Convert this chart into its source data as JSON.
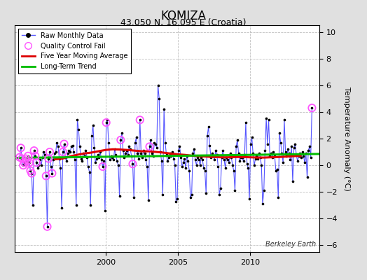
{
  "title": "KOMIZA",
  "subtitle": "43.050 N, 16.095 E (Croatia)",
  "ylabel": "Temperature Anomaly (°C)",
  "watermark": "Berkeley Earth",
  "xlim": [
    1993.7,
    2014.8
  ],
  "ylim": [
    -6.5,
    10.5
  ],
  "yticks": [
    -6,
    -4,
    -2,
    0,
    2,
    4,
    6,
    8,
    10
  ],
  "xticks": [
    2000,
    2005,
    2010
  ],
  "bg_color": "#e0e0e0",
  "plot_bg_color": "#ffffff",
  "grid_color": "#c0c0c0",
  "raw_line_color": "#5555ff",
  "raw_dot_color": "#000000",
  "qc_fail_color": "#ff55ff",
  "moving_avg_color": "#dd0000",
  "trend_color": "#00bb00",
  "raw_data": [
    [
      1994.042,
      0.6
    ],
    [
      1994.125,
      1.3
    ],
    [
      1994.208,
      0.5
    ],
    [
      1994.292,
      0.0
    ],
    [
      1994.375,
      0.2
    ],
    [
      1994.458,
      0.5
    ],
    [
      1994.542,
      0.3
    ],
    [
      1994.625,
      0.7
    ],
    [
      1994.708,
      0.2
    ],
    [
      1994.792,
      -0.4
    ],
    [
      1994.875,
      -0.6
    ],
    [
      1994.958,
      -3.0
    ],
    [
      1995.042,
      1.1
    ],
    [
      1995.125,
      0.7
    ],
    [
      1995.208,
      0.2
    ],
    [
      1995.292,
      -0.2
    ],
    [
      1995.375,
      0.0
    ],
    [
      1995.458,
      0.4
    ],
    [
      1995.542,
      0.0
    ],
    [
      1995.625,
      0.6
    ],
    [
      1995.708,
      1.0
    ],
    [
      1995.792,
      0.8
    ],
    [
      1995.875,
      -0.8
    ],
    [
      1995.958,
      -4.6
    ],
    [
      1996.042,
      0.5
    ],
    [
      1996.125,
      1.0
    ],
    [
      1996.208,
      -0.1
    ],
    [
      1996.292,
      -0.6
    ],
    [
      1996.375,
      0.4
    ],
    [
      1996.458,
      0.9
    ],
    [
      1996.542,
      1.0
    ],
    [
      1996.625,
      1.7
    ],
    [
      1996.708,
      1.4
    ],
    [
      1996.792,
      0.5
    ],
    [
      1996.875,
      -0.2
    ],
    [
      1996.958,
      -3.2
    ],
    [
      1997.042,
      1.0
    ],
    [
      1997.125,
      1.6
    ],
    [
      1997.208,
      0.6
    ],
    [
      1997.292,
      0.3
    ],
    [
      1997.375,
      0.9
    ],
    [
      1997.458,
      1.1
    ],
    [
      1997.542,
      1.0
    ],
    [
      1997.625,
      1.4
    ],
    [
      1997.708,
      1.5
    ],
    [
      1997.792,
      1.0
    ],
    [
      1997.875,
      0.4
    ],
    [
      1997.958,
      -3.0
    ],
    [
      1998.042,
      3.4
    ],
    [
      1998.125,
      2.7
    ],
    [
      1998.208,
      1.4
    ],
    [
      1998.292,
      0.5
    ],
    [
      1998.375,
      0.3
    ],
    [
      1998.458,
      0.9
    ],
    [
      1998.542,
      0.7
    ],
    [
      1998.625,
      1.1
    ],
    [
      1998.708,
      0.6
    ],
    [
      1998.792,
      -0.1
    ],
    [
      1998.875,
      -0.5
    ],
    [
      1998.958,
      -3.0
    ],
    [
      1999.042,
      2.2
    ],
    [
      1999.125,
      3.0
    ],
    [
      1999.208,
      1.3
    ],
    [
      1999.292,
      0.2
    ],
    [
      1999.375,
      0.5
    ],
    [
      1999.458,
      0.8
    ],
    [
      1999.542,
      0.6
    ],
    [
      1999.625,
      1.0
    ],
    [
      1999.708,
      0.4
    ],
    [
      1999.792,
      -0.1
    ],
    [
      1999.875,
      0.3
    ],
    [
      1999.958,
      -3.4
    ],
    [
      2000.042,
      3.2
    ],
    [
      2000.125,
      3.4
    ],
    [
      2000.208,
      1.7
    ],
    [
      2000.292,
      0.4
    ],
    [
      2000.375,
      0.7
    ],
    [
      2000.458,
      0.6
    ],
    [
      2000.542,
      0.4
    ],
    [
      2000.625,
      1.2
    ],
    [
      2000.708,
      0.8
    ],
    [
      2000.792,
      0.3
    ],
    [
      2000.875,
      -0.0
    ],
    [
      2000.958,
      -2.3
    ],
    [
      2001.042,
      1.9
    ],
    [
      2001.125,
      2.4
    ],
    [
      2001.208,
      1.1
    ],
    [
      2001.292,
      0.6
    ],
    [
      2001.375,
      0.9
    ],
    [
      2001.458,
      1.1
    ],
    [
      2001.542,
      0.8
    ],
    [
      2001.625,
      1.4
    ],
    [
      2001.708,
      1.2
    ],
    [
      2001.792,
      0.7
    ],
    [
      2001.875,
      0.1
    ],
    [
      2001.958,
      -2.4
    ],
    [
      2002.042,
      1.7
    ],
    [
      2002.125,
      2.1
    ],
    [
      2002.208,
      0.9
    ],
    [
      2002.292,
      0.5
    ],
    [
      2002.375,
      3.4
    ],
    [
      2002.458,
      0.9
    ],
    [
      2002.542,
      0.6
    ],
    [
      2002.625,
      1.1
    ],
    [
      2002.708,
      0.9
    ],
    [
      2002.792,
      0.4
    ],
    [
      2002.875,
      -0.1
    ],
    [
      2002.958,
      -2.6
    ],
    [
      2003.042,
      1.4
    ],
    [
      2003.125,
      1.9
    ],
    [
      2003.208,
      0.9
    ],
    [
      2003.292,
      0.7
    ],
    [
      2003.375,
      1.7
    ],
    [
      2003.458,
      1.6
    ],
    [
      2003.542,
      1.3
    ],
    [
      2003.625,
      6.0
    ],
    [
      2003.708,
      5.0
    ],
    [
      2003.792,
      1.0
    ],
    [
      2003.875,
      0.3
    ],
    [
      2003.958,
      -2.2
    ],
    [
      2004.042,
      4.2
    ],
    [
      2004.125,
      1.7
    ],
    [
      2004.208,
      0.8
    ],
    [
      2004.292,
      0.3
    ],
    [
      2004.375,
      0.6
    ],
    [
      2004.458,
      0.9
    ],
    [
      2004.542,
      0.7
    ],
    [
      2004.625,
      1.0
    ],
    [
      2004.708,
      0.5
    ],
    [
      2004.792,
      0.0
    ],
    [
      2004.875,
      -2.7
    ],
    [
      2004.958,
      -2.5
    ],
    [
      2005.042,
      1.1
    ],
    [
      2005.125,
      1.4
    ],
    [
      2005.208,
      0.6
    ],
    [
      2005.292,
      -0.1
    ],
    [
      2005.375,
      0.2
    ],
    [
      2005.458,
      0.5
    ],
    [
      2005.542,
      -0.2
    ],
    [
      2005.625,
      0.7
    ],
    [
      2005.708,
      0.3
    ],
    [
      2005.792,
      -0.4
    ],
    [
      2005.875,
      -2.4
    ],
    [
      2005.958,
      -2.2
    ],
    [
      2006.042,
      0.9
    ],
    [
      2006.125,
      1.2
    ],
    [
      2006.208,
      0.4
    ],
    [
      2006.292,
      0.0
    ],
    [
      2006.375,
      0.6
    ],
    [
      2006.458,
      0.4
    ],
    [
      2006.542,
      0.0
    ],
    [
      2006.625,
      0.6
    ],
    [
      2006.708,
      0.4
    ],
    [
      2006.792,
      -0.2
    ],
    [
      2006.875,
      -0.4
    ],
    [
      2006.958,
      -2.1
    ],
    [
      2007.042,
      2.2
    ],
    [
      2007.125,
      2.9
    ],
    [
      2007.208,
      1.5
    ],
    [
      2007.292,
      0.6
    ],
    [
      2007.375,
      0.9
    ],
    [
      2007.458,
      0.7
    ],
    [
      2007.542,
      0.4
    ],
    [
      2007.625,
      1.1
    ],
    [
      2007.708,
      0.8
    ],
    [
      2007.792,
      -0.1
    ],
    [
      2007.875,
      -2.2
    ],
    [
      2007.958,
      -1.7
    ],
    [
      2008.042,
      0.6
    ],
    [
      2008.125,
      1.1
    ],
    [
      2008.208,
      0.4
    ],
    [
      2008.292,
      -0.2
    ],
    [
      2008.375,
      0.6
    ],
    [
      2008.458,
      0.4
    ],
    [
      2008.542,
      0.2
    ],
    [
      2008.625,
      0.9
    ],
    [
      2008.708,
      0.6
    ],
    [
      2008.792,
      0.0
    ],
    [
      2008.875,
      -0.4
    ],
    [
      2008.958,
      -1.9
    ],
    [
      2009.042,
      1.4
    ],
    [
      2009.125,
      1.9
    ],
    [
      2009.208,
      0.9
    ],
    [
      2009.292,
      0.3
    ],
    [
      2009.375,
      0.6
    ],
    [
      2009.458,
      0.6
    ],
    [
      2009.542,
      0.3
    ],
    [
      2009.625,
      0.8
    ],
    [
      2009.708,
      3.2
    ],
    [
      2009.792,
      0.1
    ],
    [
      2009.875,
      -0.2
    ],
    [
      2009.958,
      -2.5
    ],
    [
      2010.042,
      1.6
    ],
    [
      2010.125,
      2.1
    ],
    [
      2010.208,
      0.9
    ],
    [
      2010.292,
      0.0
    ],
    [
      2010.375,
      0.5
    ],
    [
      2010.458,
      0.7
    ],
    [
      2010.542,
      0.5
    ],
    [
      2010.625,
      0.9
    ],
    [
      2010.708,
      0.6
    ],
    [
      2010.792,
      0.0
    ],
    [
      2010.875,
      -2.9
    ],
    [
      2010.958,
      -1.9
    ],
    [
      2011.042,
      1.1
    ],
    [
      2011.125,
      3.5
    ],
    [
      2011.208,
      1.6
    ],
    [
      2011.292,
      3.4
    ],
    [
      2011.375,
      0.7
    ],
    [
      2011.458,
      0.9
    ],
    [
      2011.542,
      0.6
    ],
    [
      2011.625,
      1.0
    ],
    [
      2011.708,
      0.7
    ],
    [
      2011.792,
      -0.4
    ],
    [
      2011.875,
      -0.3
    ],
    [
      2011.958,
      -2.4
    ],
    [
      2012.042,
      2.4
    ],
    [
      2012.125,
      1.7
    ],
    [
      2012.208,
      0.9
    ],
    [
      2012.292,
      0.2
    ],
    [
      2012.375,
      3.4
    ],
    [
      2012.458,
      1.0
    ],
    [
      2012.542,
      0.7
    ],
    [
      2012.625,
      1.2
    ],
    [
      2012.708,
      0.9
    ],
    [
      2012.792,
      0.4
    ],
    [
      2012.875,
      1.4
    ],
    [
      2012.958,
      -1.2
    ],
    [
      2013.042,
      1.3
    ],
    [
      2013.125,
      1.6
    ],
    [
      2013.208,
      0.8
    ],
    [
      2013.292,
      0.3
    ],
    [
      2013.375,
      0.7
    ],
    [
      2013.458,
      0.9
    ],
    [
      2013.542,
      0.6
    ],
    [
      2013.625,
      1.0
    ],
    [
      2013.708,
      0.7
    ],
    [
      2013.792,
      0.2
    ],
    [
      2013.875,
      0.9
    ],
    [
      2013.958,
      -0.9
    ],
    [
      2014.042,
      1.1
    ],
    [
      2014.125,
      1.4
    ],
    [
      2014.208,
      0.6
    ],
    [
      2014.292,
      4.3
    ]
  ],
  "qc_fail_points": [
    [
      1994.042,
      0.6
    ],
    [
      1994.125,
      1.3
    ],
    [
      1994.208,
      0.5
    ],
    [
      1994.292,
      0.0
    ],
    [
      1994.375,
      0.2
    ],
    [
      1994.458,
      0.5
    ],
    [
      1994.542,
      0.3
    ],
    [
      1994.625,
      0.7
    ],
    [
      1994.708,
      0.2
    ],
    [
      1994.792,
      -0.4
    ],
    [
      1994.875,
      -0.6
    ],
    [
      1995.042,
      1.1
    ],
    [
      1995.125,
      0.7
    ],
    [
      1995.208,
      0.2
    ],
    [
      1995.875,
      -0.8
    ],
    [
      1995.958,
      -4.6
    ],
    [
      1996.042,
      0.5
    ],
    [
      1996.125,
      1.0
    ],
    [
      1996.292,
      -0.6
    ],
    [
      1997.042,
      1.0
    ],
    [
      1997.125,
      1.6
    ],
    [
      1999.792,
      -0.1
    ],
    [
      2000.042,
      3.2
    ],
    [
      2001.042,
      1.9
    ],
    [
      2001.875,
      0.1
    ],
    [
      2002.375,
      3.4
    ],
    [
      2003.042,
      1.4
    ],
    [
      2014.292,
      4.3
    ]
  ],
  "moving_avg_x": [
    1996.5,
    1997.0,
    1997.5,
    1998.0,
    1998.5,
    1999.0,
    1999.5,
    2000.0,
    2000.5,
    2001.0,
    2001.5,
    2002.0,
    2002.5,
    2003.0,
    2003.5,
    2004.0,
    2004.5,
    2005.0,
    2005.5,
    2006.0,
    2006.5,
    2007.0,
    2007.5,
    2008.0,
    2008.5,
    2009.0,
    2009.5,
    2010.0,
    2010.5,
    2011.0,
    2011.5,
    2012.0,
    2012.5,
    2013.0,
    2013.5
  ],
  "moving_avg_y": [
    0.45,
    0.5,
    0.65,
    0.78,
    0.88,
    0.95,
    1.05,
    1.15,
    1.2,
    1.18,
    1.15,
    1.1,
    1.05,
    1.05,
    1.0,
    0.95,
    0.88,
    0.82,
    0.78,
    0.72,
    0.68,
    0.65,
    0.62,
    0.6,
    0.6,
    0.62,
    0.62,
    0.6,
    0.58,
    0.58,
    0.6,
    0.62,
    0.65,
    0.68,
    0.72
  ],
  "trend_x": [
    1993.7,
    2014.8
  ],
  "trend_y": [
    0.55,
    0.85
  ],
  "title_fontsize": 12,
  "subtitle_fontsize": 9,
  "tick_fontsize": 8,
  "ylabel_fontsize": 8,
  "legend_fontsize": 7,
  "watermark_fontsize": 7
}
